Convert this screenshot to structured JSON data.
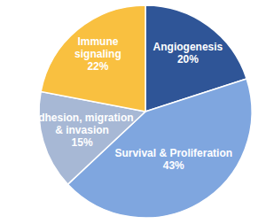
{
  "chart_data": {
    "type": "pie",
    "categories": [
      "Angiogenesis",
      "Survival & Proliferation",
      "Adhesion, migration & invasion",
      "Immune signaling"
    ],
    "values": [
      20,
      43,
      15,
      22
    ],
    "value_labels": [
      "20%",
      "43%",
      "15%",
      "22%"
    ],
    "colors": [
      "#2f5597",
      "#7fa6df",
      "#a7b8d5",
      "#f9c040"
    ],
    "data_labels": true
  }
}
